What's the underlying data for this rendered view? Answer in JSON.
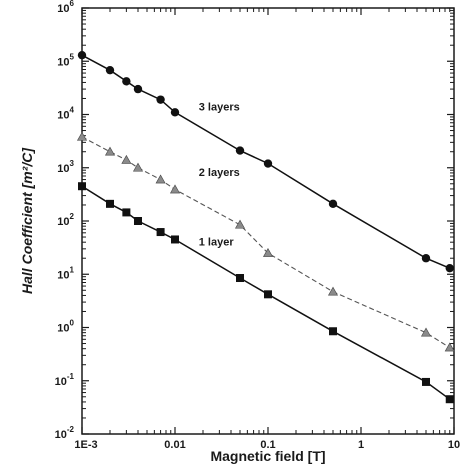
{
  "chart_data": {
    "type": "line",
    "xlabel": "Magnetic field [T]",
    "ylabel": "Hall Coefficient [m²/C]",
    "x_scale": "log",
    "y_scale": "log",
    "xlim": [
      0.001,
      10
    ],
    "ylim": [
      0.01,
      1000000
    ],
    "x_ticks": [
      {
        "value": 0.001,
        "label": "1E-3"
      },
      {
        "value": 0.01,
        "label": "0.01"
      },
      {
        "value": 0.1,
        "label": "0.1"
      },
      {
        "value": 1,
        "label": "1"
      },
      {
        "value": 10,
        "label": "10"
      }
    ],
    "y_ticks": [
      {
        "value": 0.01,
        "mant": "10",
        "exp": "-2"
      },
      {
        "value": 0.1,
        "mant": "10",
        "exp": "-1"
      },
      {
        "value": 1,
        "mant": "10",
        "exp": "0"
      },
      {
        "value": 10,
        "mant": "10",
        "exp": "1"
      },
      {
        "value": 100,
        "mant": "10",
        "exp": "2"
      },
      {
        "value": 1000,
        "mant": "10",
        "exp": "3"
      },
      {
        "value": 10000,
        "mant": "10",
        "exp": "4"
      },
      {
        "value": 100000,
        "mant": "10",
        "exp": "5"
      },
      {
        "value": 1000000,
        "mant": "10",
        "exp": "6"
      }
    ],
    "grid": false,
    "series": [
      {
        "name": "3 layers",
        "marker": "circle",
        "line": "solid",
        "color": "#111111",
        "label_at": {
          "x": 0.018,
          "y": 12000
        },
        "points": [
          {
            "x": 0.001,
            "y": 130000
          },
          {
            "x": 0.002,
            "y": 68000
          },
          {
            "x": 0.003,
            "y": 42000
          },
          {
            "x": 0.004,
            "y": 30000
          },
          {
            "x": 0.007,
            "y": 19000
          },
          {
            "x": 0.01,
            "y": 11000
          },
          {
            "x": 0.05,
            "y": 2100
          },
          {
            "x": 0.1,
            "y": 1200
          },
          {
            "x": 0.5,
            "y": 210
          },
          {
            "x": 5,
            "y": 20
          },
          {
            "x": 9,
            "y": 13
          }
        ]
      },
      {
        "name": "2 layers",
        "marker": "triangle",
        "line": "dashed",
        "color": "#555555",
        "label_at": {
          "x": 0.018,
          "y": 700
        },
        "points": [
          {
            "x": 0.001,
            "y": 3800
          },
          {
            "x": 0.002,
            "y": 2000
          },
          {
            "x": 0.003,
            "y": 1400
          },
          {
            "x": 0.004,
            "y": 1000
          },
          {
            "x": 0.007,
            "y": 600
          },
          {
            "x": 0.01,
            "y": 390
          },
          {
            "x": 0.05,
            "y": 85
          },
          {
            "x": 0.1,
            "y": 25
          },
          {
            "x": 0.5,
            "y": 4.7
          },
          {
            "x": 5,
            "y": 0.8
          },
          {
            "x": 9,
            "y": 0.42
          }
        ]
      },
      {
        "name": "1 layer",
        "marker": "square",
        "line": "solid",
        "color": "#111111",
        "label_at": {
          "x": 0.018,
          "y": 35
        },
        "points": [
          {
            "x": 0.001,
            "y": 450
          },
          {
            "x": 0.002,
            "y": 210
          },
          {
            "x": 0.003,
            "y": 145
          },
          {
            "x": 0.004,
            "y": 100
          },
          {
            "x": 0.007,
            "y": 62
          },
          {
            "x": 0.01,
            "y": 45
          },
          {
            "x": 0.05,
            "y": 8.5
          },
          {
            "x": 0.1,
            "y": 4.2
          },
          {
            "x": 0.5,
            "y": 0.85
          },
          {
            "x": 5,
            "y": 0.095
          },
          {
            "x": 9,
            "y": 0.045
          }
        ]
      }
    ]
  }
}
